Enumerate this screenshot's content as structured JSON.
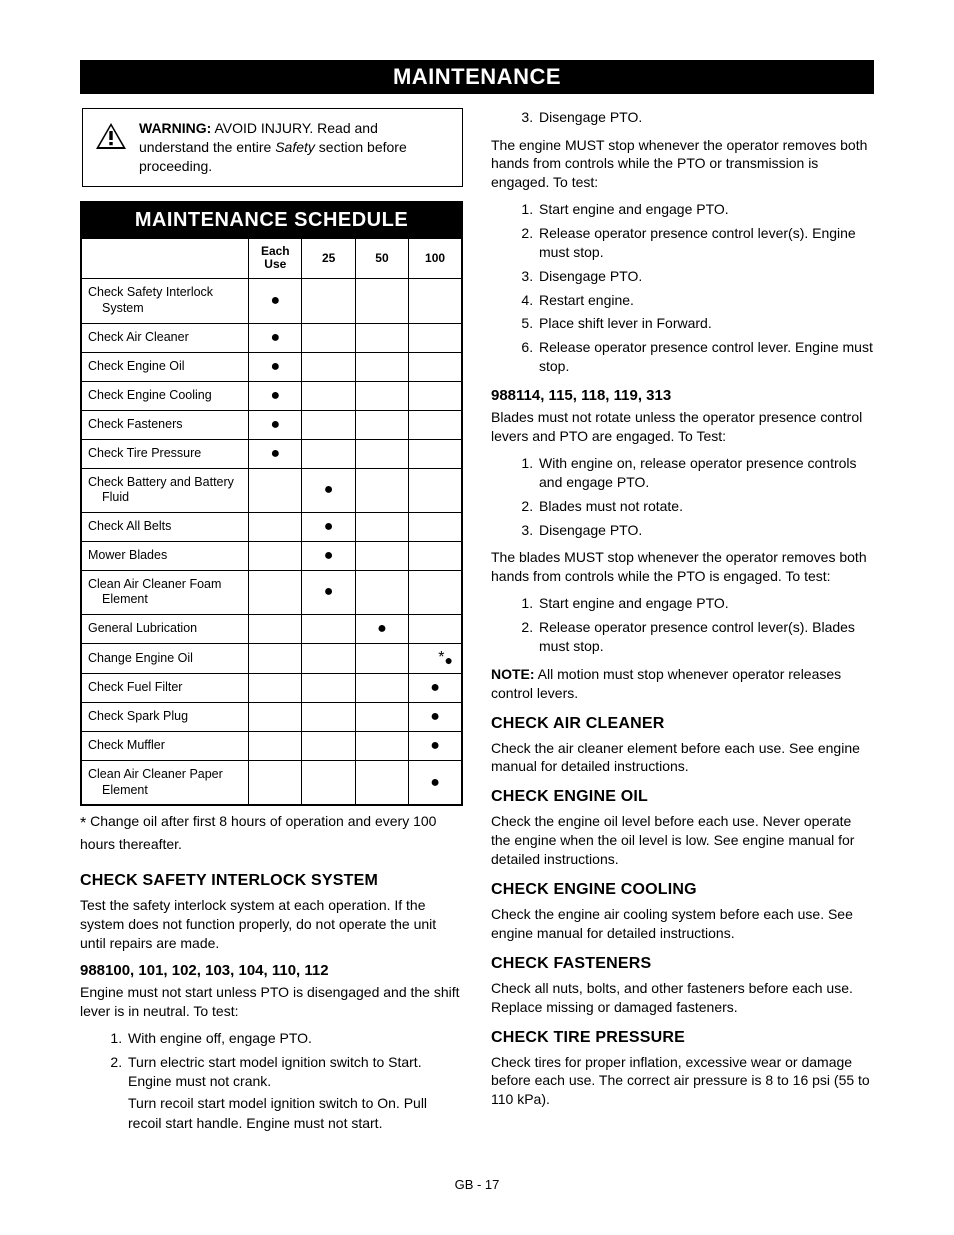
{
  "banner": "MAINTENANCE",
  "warning": {
    "label": "WARNING:",
    "text_before": " AVOID INJURY. Read and understand the entire ",
    "italic": "Safety",
    "text_after": " section before proceeding."
  },
  "schedule": {
    "title": "MAINTENANCE SCHEDULE",
    "headers": [
      "",
      "Each Use",
      "25",
      "50",
      "100"
    ],
    "rows": [
      {
        "task": "Check Safety Interlock",
        "task2": "System",
        "marks": [
          "each"
        ]
      },
      {
        "task": "Check Air Cleaner",
        "marks": [
          "each"
        ]
      },
      {
        "task": "Check Engine Oil",
        "marks": [
          "each"
        ]
      },
      {
        "task": "Check Engine Cooling",
        "marks": [
          "each"
        ]
      },
      {
        "task": "Check Fasteners",
        "marks": [
          "each"
        ]
      },
      {
        "task": "Check Tire Pressure",
        "marks": [
          "each"
        ]
      },
      {
        "task": "Check Battery and Battery",
        "task2": "Fluid",
        "marks": [
          "25"
        ]
      },
      {
        "task": "Check All Belts",
        "marks": [
          "25"
        ]
      },
      {
        "task": "Mower Blades",
        "marks": [
          "25"
        ]
      },
      {
        "task": "Clean Air Cleaner Foam",
        "task2": "Element",
        "marks": [
          "25"
        ]
      },
      {
        "task": "General Lubrication",
        "marks": [
          "50"
        ]
      },
      {
        "task": "Change Engine Oil",
        "marks": [
          "100star"
        ]
      },
      {
        "task": "Check Fuel Filter",
        "marks": [
          "100"
        ]
      },
      {
        "task": "Check Spark Plug",
        "marks": [
          "100"
        ]
      },
      {
        "task": "Check Muffler",
        "marks": [
          "100"
        ]
      },
      {
        "task": "Clean Air Cleaner Paper",
        "task2": "Element",
        "marks": [
          "100"
        ]
      }
    ],
    "dot": "●",
    "star": "*",
    "footnote": "Change oil after first 8 hours of operation and every 100 hours thereafter."
  },
  "left": {
    "h_interlock": "CHECK SAFETY INTERLOCK SYSTEM",
    "p_interlock": "Test the safety interlock system at each operation. If the system does not function properly, do not operate the unit until repairs are made.",
    "sub_models1": "988100, 101, 102, 103, 104, 110, 112",
    "p_models1": "Engine must not start unless PTO is disengaged and the shift lever is in neutral. To test:",
    "list1": [
      "With engine off, engage PTO.",
      "Turn electric start model ignition switch to Start. Engine must not crank."
    ],
    "list1_sub": "Turn recoil start model ignition switch to On. Pull recoil start handle. Engine must not start."
  },
  "right": {
    "li3": "Disengage PTO.",
    "p1": "The engine MUST stop whenever the operator removes both hands from controls while the PTO or transmission is engaged. To test:",
    "list2": [
      "Start engine and engage PTO.",
      "Release operator presence control lever(s). Engine must stop.",
      "Disengage PTO.",
      "Restart engine.",
      "Place shift lever in Forward.",
      "Release operator presence control lever. Engine must stop."
    ],
    "sub_models2": "988114, 115, 118, 119, 313",
    "p_models2": "Blades must not rotate unless the operator presence control levers and PTO are engaged. To Test:",
    "list3": [
      "With engine on, release operator presence controls and engage PTO.",
      "Blades must not rotate.",
      "Disengage PTO."
    ],
    "p2": "The blades MUST stop whenever the operator removes both hands from controls while the PTO is engaged. To test:",
    "list4": [
      "Start engine and engage PTO.",
      "Release operator presence control lever(s). Blades must stop."
    ],
    "note_label": "NOTE:",
    "note_text": " All motion must stop whenever operator releases control levers.",
    "h_air": "CHECK AIR CLEANER",
    "p_air": "Check the air cleaner element before each use. See engine manual for detailed instructions.",
    "h_oil": "CHECK ENGINE OIL",
    "p_oil": "Check the engine oil level before each use. Never operate the engine when the oil level is low. See engine manual for detailed instructions.",
    "h_cool": "CHECK ENGINE COOLING",
    "p_cool": "Check the engine air cooling system before each use. See engine manual for detailed instructions.",
    "h_fast": "CHECK FASTENERS",
    "p_fast": "Check all nuts, bolts, and other fasteners before each use. Replace missing or damaged fasteners.",
    "h_tire": "CHECK TIRE PRESSURE",
    "p_tire": "Check tires for proper inflation, excessive wear or damage before each use. The correct air pressure is 8 to 16 psi (55 to 110 kPa)."
  },
  "page_num": "GB - 17"
}
